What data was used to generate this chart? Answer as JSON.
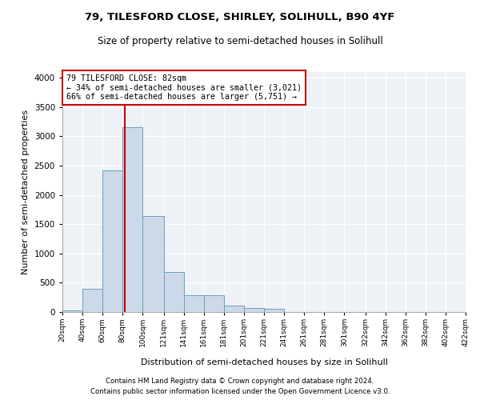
{
  "title1": "79, TILESFORD CLOSE, SHIRLEY, SOLIHULL, B90 4YF",
  "title2": "Size of property relative to semi-detached houses in Solihull",
  "xlabel": "Distribution of semi-detached houses by size in Solihull",
  "ylabel": "Number of semi-detached properties",
  "footer1": "Contains HM Land Registry data © Crown copyright and database right 2024.",
  "footer2": "Contains public sector information licensed under the Open Government Licence v3.0.",
  "annotation_title": "79 TILESFORD CLOSE: 82sqm",
  "annotation_line1": "← 34% of semi-detached houses are smaller (3,021)",
  "annotation_line2": "66% of semi-detached houses are larger (5,751) →",
  "property_size": 82,
  "bin_edges": [
    20,
    40,
    60,
    80,
    100,
    121,
    141,
    161,
    181,
    201,
    221,
    241,
    261,
    281,
    301,
    322,
    342,
    362,
    382,
    402,
    422
  ],
  "bar_heights": [
    30,
    395,
    2420,
    3155,
    1640,
    680,
    290,
    290,
    115,
    65,
    60,
    0,
    0,
    0,
    0,
    0,
    0,
    0,
    0,
    0
  ],
  "bar_color": "#ccd9e8",
  "bar_edge_color": "#6a9ec0",
  "vline_color": "#cc0000",
  "annotation_box_color": "#cc0000",
  "background_color": "#eef2f7",
  "ylim": [
    0,
    4100
  ],
  "yticks": [
    0,
    500,
    1000,
    1500,
    2000,
    2500,
    3000,
    3500,
    4000
  ]
}
